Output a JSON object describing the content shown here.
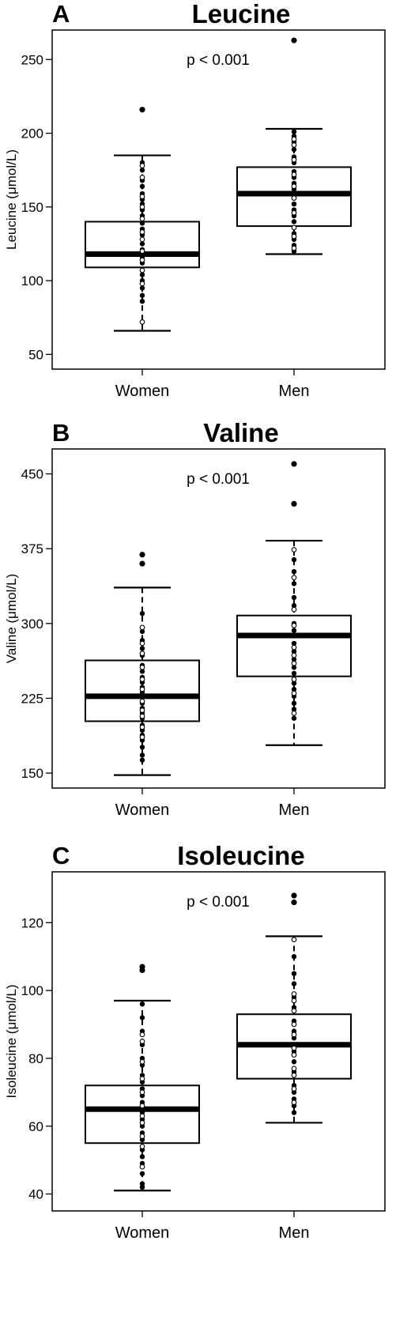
{
  "chart_data": [
    {
      "type": "box",
      "panel_label": "A",
      "title": "Leucine",
      "ylabel": "Leucine (μmol/L)",
      "annotation": "p < 0.001",
      "categories": [
        "Women",
        "Men"
      ],
      "ylim": [
        40,
        270
      ],
      "yticks": [
        50,
        100,
        150,
        200,
        250
      ],
      "boxes": [
        {
          "category": "Women",
          "whisker_low": 66,
          "q1": 109,
          "median": 118,
          "q3": 140,
          "whisker_high": 185,
          "outliers": [
            216
          ],
          "points_filled": [
            86,
            90,
            95,
            100,
            104,
            112,
            116,
            121,
            125,
            131,
            135,
            139,
            144,
            148,
            152,
            155,
            159,
            164,
            168,
            175,
            180
          ],
          "points_open": [
            72,
            98,
            107,
            114,
            120,
            128,
            133,
            142,
            150,
            157,
            170,
            178
          ]
        },
        {
          "category": "Men",
          "whisker_low": 118,
          "q1": 137,
          "median": 159,
          "q3": 177,
          "whisker_high": 203,
          "outliers": [
            263
          ],
          "points_filled": [
            120,
            124,
            128,
            132,
            140,
            144,
            148,
            152,
            162,
            166,
            170,
            174,
            180,
            184,
            189,
            194,
            198,
            201
          ],
          "points_open": [
            122,
            130,
            136,
            146,
            156,
            164,
            172,
            182,
            192,
            196
          ]
        }
      ]
    },
    {
      "type": "box",
      "panel_label": "B",
      "title": "Valine",
      "ylabel": "Valine (μmol/L)",
      "annotation": "p < 0.001",
      "categories": [
        "Women",
        "Men"
      ],
      "ylim": [
        135,
        475
      ],
      "yticks": [
        150,
        225,
        300,
        375,
        450
      ],
      "boxes": [
        {
          "category": "Women",
          "whisker_low": 148,
          "q1": 202,
          "median": 227,
          "q3": 263,
          "whisker_high": 336,
          "outliers": [
            360,
            369
          ],
          "points_filled": [
            163,
            168,
            176,
            183,
            188,
            193,
            198,
            205,
            210,
            215,
            220,
            231,
            236,
            241,
            246,
            252,
            258,
            268,
            275,
            283,
            292,
            310
          ],
          "points_open": [
            186,
            196,
            207,
            213,
            222,
            234,
            244,
            256,
            270,
            280,
            296
          ]
        },
        {
          "category": "Men",
          "whisker_low": 178,
          "q1": 247,
          "median": 288,
          "q3": 308,
          "whisker_high": 383,
          "outliers": [
            420,
            460
          ],
          "points_filled": [
            205,
            214,
            220,
            227,
            234,
            240,
            250,
            256,
            264,
            272,
            280,
            293,
            300,
            318,
            326,
            340,
            352,
            364
          ],
          "points_open": [
            210,
            230,
            244,
            260,
            268,
            276,
            298,
            314,
            346,
            374
          ]
        }
      ]
    },
    {
      "type": "box",
      "panel_label": "C",
      "title": "Isoleucine",
      "ylabel": "Isoleucine (μmol/L)",
      "annotation": "p < 0.001",
      "categories": [
        "Women",
        "Men"
      ],
      "ylim": [
        35,
        135
      ],
      "yticks": [
        40,
        60,
        80,
        100,
        120
      ],
      "boxes": [
        {
          "category": "Women",
          "whisker_low": 41,
          "q1": 55,
          "median": 65,
          "q3": 72,
          "whisker_high": 97,
          "outliers": [
            106,
            107
          ],
          "points_filled": [
            42,
            43,
            46,
            49,
            51,
            53,
            56,
            58,
            60,
            62,
            64,
            67,
            69,
            71,
            73,
            75,
            78,
            80,
            84,
            88,
            92,
            96
          ],
          "points_open": [
            48,
            54,
            57,
            61,
            63,
            66,
            70,
            74,
            79,
            85,
            87
          ]
        },
        {
          "category": "Men",
          "whisker_low": 61,
          "q1": 74,
          "median": 84,
          "q3": 93,
          "whisker_high": 116,
          "outliers": [
            126,
            128
          ],
          "points_filled": [
            64,
            66,
            68,
            70,
            72,
            76,
            79,
            82,
            86,
            88,
            91,
            95,
            98,
            102,
            105,
            110
          ],
          "points_open": [
            67,
            71,
            75,
            77,
            81,
            83,
            87,
            90,
            94,
            97,
            99,
            115
          ]
        }
      ]
    }
  ]
}
